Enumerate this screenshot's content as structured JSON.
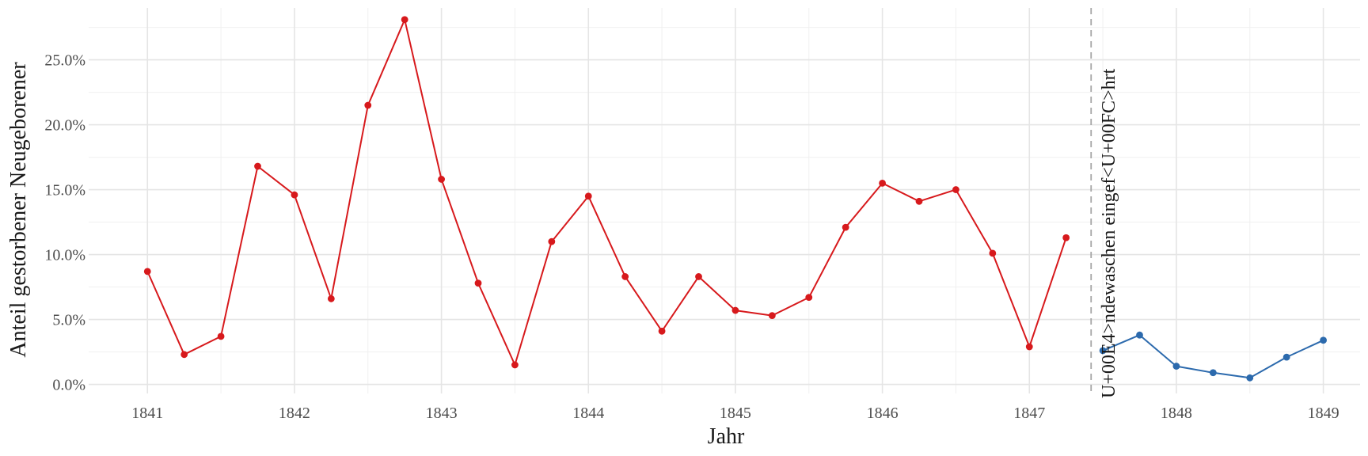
{
  "chart_data": {
    "type": "line",
    "xlabel": "Jahr",
    "ylabel": "Anteil gestorbener Neugeborener",
    "xlim": [
      1840.6,
      1849.25
    ],
    "ylim": [
      -0.007,
      0.29
    ],
    "x_ticks": [
      1841,
      1842,
      1843,
      1844,
      1845,
      1846,
      1847,
      1848,
      1849
    ],
    "x_tick_labels": [
      "1841",
      "1842",
      "1843",
      "1844",
      "1845",
      "1846",
      "1847",
      "1848",
      "1849"
    ],
    "y_ticks": [
      0,
      0.05,
      0.1,
      0.15,
      0.2,
      0.25
    ],
    "y_tick_labels": [
      "0.0%",
      "5.0%",
      "10.0%",
      "15.0%",
      "20.0%",
      "25.0%"
    ],
    "grid": true,
    "series": [
      {
        "color": "#d7191c",
        "x": [
          1841.0,
          1841.25,
          1841.5,
          1841.75,
          1842.0,
          1842.25,
          1842.5,
          1842.75,
          1843.0,
          1843.25,
          1843.5,
          1843.75,
          1844.0,
          1844.25,
          1844.5,
          1844.75,
          1845.0,
          1845.25,
          1845.5,
          1845.75,
          1846.0,
          1846.25,
          1846.5,
          1846.75,
          1847.0,
          1847.25
        ],
        "y": [
          0.087,
          0.023,
          0.037,
          0.168,
          0.146,
          0.066,
          0.215,
          0.281,
          0.158,
          0.078,
          0.015,
          0.11,
          0.145,
          0.083,
          0.041,
          0.083,
          0.057,
          0.053,
          0.067,
          0.121,
          0.155,
          0.141,
          0.15,
          0.101,
          0.029,
          0.113
        ]
      },
      {
        "color": "#2c6aad",
        "x": [
          1847.5,
          1847.75,
          1848.0,
          1848.25,
          1848.5,
          1848.75,
          1849.0
        ],
        "y": [
          0.026,
          0.038,
          0.014,
          0.009,
          0.005,
          0.021,
          0.034
        ]
      }
    ],
    "annotation": {
      "x": 1847.42,
      "text": "U+00E4>ndewaschen eingef<U+00FC>hrt"
    }
  }
}
